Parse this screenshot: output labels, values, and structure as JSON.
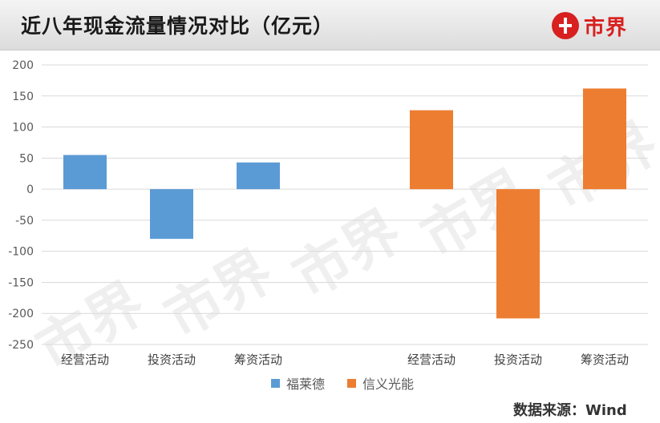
{
  "header": {
    "title": "近八年现金流量情况对比（亿元）",
    "logo_text": "市界"
  },
  "watermark_text": "市界",
  "source_text": "数据来源：Wind",
  "colors": {
    "series1": "#5b9bd5",
    "series2": "#ed7d31",
    "grid": "#d9d9d9"
  },
  "chart_data": {
    "type": "bar",
    "categories": [
      "经营活动",
      "投资活动",
      "筹资活动",
      "",
      "经营活动",
      "投资活动",
      "筹资活动"
    ],
    "ylim": [
      -250,
      200
    ],
    "yticks": [
      200,
      150,
      100,
      50,
      0,
      -50,
      -100,
      -150,
      -200,
      -250
    ],
    "grid": true,
    "legend_position": "bottom",
    "series": [
      {
        "name": "福莱德",
        "values": [
          55,
          -80,
          43,
          null,
          null,
          null,
          null
        ]
      },
      {
        "name": "信义光能",
        "values": [
          null,
          null,
          null,
          null,
          127,
          -208,
          162
        ]
      }
    ]
  }
}
